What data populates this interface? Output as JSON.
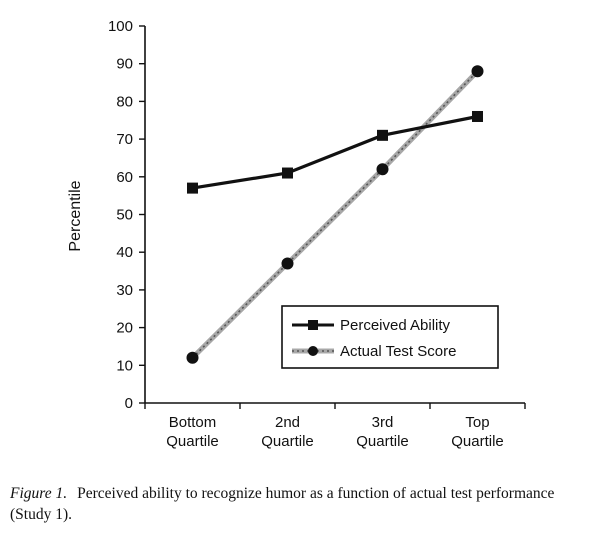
{
  "chart_data": {
    "type": "line",
    "title": "",
    "xlabel": "",
    "ylabel": "Percentile",
    "ylim": [
      0,
      100
    ],
    "y_ticks": [
      "0",
      "10",
      "20",
      "30",
      "40",
      "50",
      "60",
      "70",
      "80",
      "90",
      "100"
    ],
    "categories": [
      [
        "Bottom",
        "Quartile"
      ],
      [
        "2nd",
        "Quartile"
      ],
      [
        "3rd",
        "Quartile"
      ],
      [
        "Top",
        "Quartile"
      ]
    ],
    "series": [
      {
        "name": "Perceived Ability",
        "values": [
          57,
          61,
          71,
          76
        ],
        "marker": "square",
        "color": "#111111",
        "style": "solid"
      },
      {
        "name": "Actual Test Score",
        "values": [
          12,
          37,
          62,
          88
        ],
        "marker": "circle",
        "color": "#888888",
        "style": "dotted"
      }
    ],
    "grid": false,
    "legend_position": "bottom-right"
  },
  "caption": {
    "label": "Figure 1.",
    "text": "Perceived ability to recognize humor as a function of actual test performance (Study 1)."
  }
}
